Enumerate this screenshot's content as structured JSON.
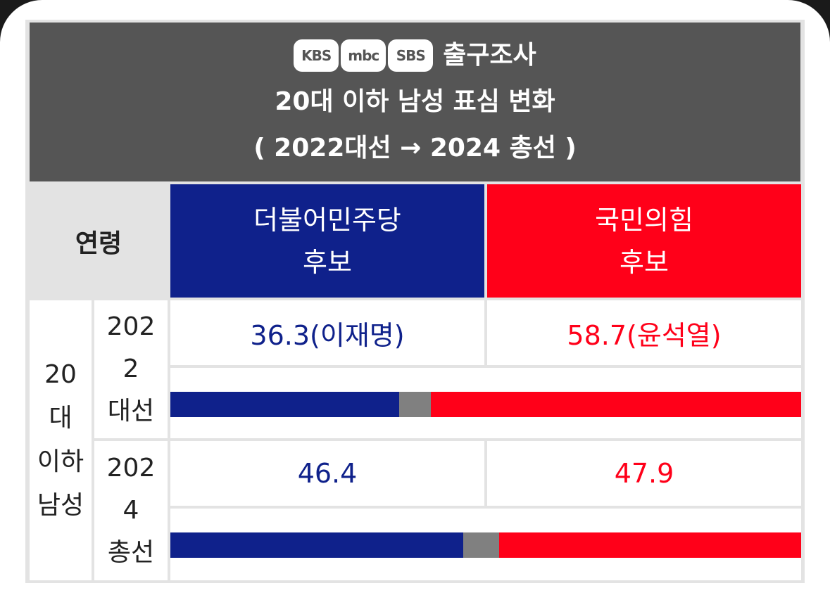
{
  "header": {
    "logos": [
      "KBS",
      "mbc",
      "SBS"
    ],
    "title_line1": "출구조사",
    "title_line2": "20대 이하 남성 표심 변화",
    "title_line3": "( 2022대선 → 2024 총선 )"
  },
  "table": {
    "age_header": "연령",
    "group_label_lines": [
      "20",
      "대",
      "이하",
      "남성"
    ],
    "parties": [
      {
        "name": "더불어민주당",
        "sub": "후보",
        "color": "#0f218b"
      },
      {
        "name": "국민의힘",
        "sub": "후보",
        "color": "#ff0019"
      }
    ]
  },
  "colors": {
    "other": "#808080",
    "header_bg": "#555555",
    "age_bg": "#e3e3e3"
  },
  "chart_data": {
    "type": "bar",
    "orientation": "horizontal-stacked",
    "categories": [
      "2022 대선",
      "2024 총선"
    ],
    "rows": [
      {
        "year_lines": [
          "202",
          "2",
          "대선"
        ],
        "dem_text": "36.3(이재명)",
        "ppp_text": "58.7(윤석열)",
        "dem": 36.3,
        "ppp": 58.7
      },
      {
        "year_lines": [
          "202",
          "4",
          "총선"
        ],
        "dem_text": "46.4",
        "ppp_text": "47.9",
        "dem": 46.4,
        "ppp": 47.9
      }
    ],
    "series": [
      {
        "name": "더불어민주당",
        "values": [
          36.3,
          46.4
        ]
      },
      {
        "name": "국민의힘",
        "values": [
          58.7,
          47.9
        ]
      }
    ],
    "xlim": [
      0,
      100
    ]
  }
}
